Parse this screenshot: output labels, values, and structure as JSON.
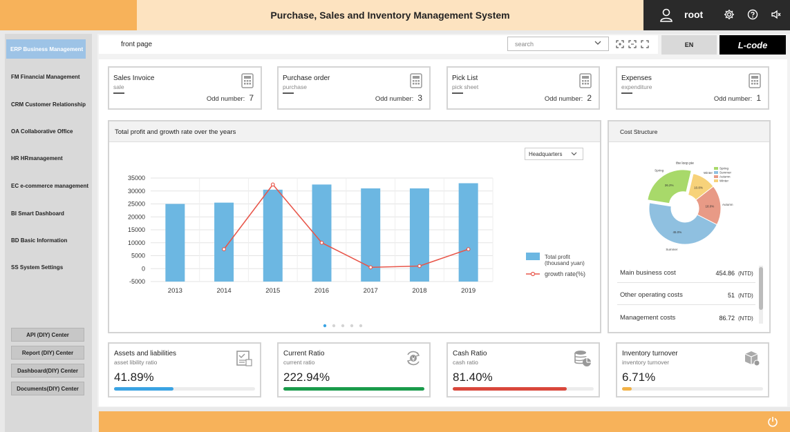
{
  "header": {
    "title": "Purchase, Sales and Inventory Management System",
    "user": "root"
  },
  "sidebar": {
    "items": [
      {
        "label": "ERP Business Management"
      },
      {
        "label": "FM Financial Management"
      },
      {
        "label": "CRM Customer Relationship"
      },
      {
        "label": "OA Collaborative Office"
      },
      {
        "label": "HR HRmanagement"
      },
      {
        "label": "EC e-commerce management"
      },
      {
        "label": "BI Smart Dashboard"
      },
      {
        "label": "BD Basic Information"
      },
      {
        "label": "SS System Settings"
      }
    ],
    "buttons": [
      {
        "label": "API (DIY) Center"
      },
      {
        "label": "Report (DIY) Center"
      },
      {
        "label": "Dashboard(DIY) Center"
      },
      {
        "label": "Documents(DIY) Center"
      }
    ]
  },
  "topbar": {
    "breadcrumb": "front page",
    "search_placeholder": "search",
    "lang_button": "EN",
    "lcode_button": "L-code"
  },
  "summary_cards": [
    {
      "title": "Sales Invoice",
      "subtitle": "sale",
      "dash": "—",
      "odd_label": "Odd number:",
      "odd_value": "7"
    },
    {
      "title": "Purchase order",
      "subtitle": "purchase",
      "dash": "—",
      "odd_label": "Odd number:",
      "odd_value": "3"
    },
    {
      "title": "Pick List",
      "subtitle": "pick sheet",
      "dash": "—",
      "odd_label": "Odd number:",
      "odd_value": "2"
    },
    {
      "title": "Expenses",
      "subtitle": "expenditure",
      "dash": "—",
      "odd_label": "Odd number:",
      "odd_value": "1"
    }
  ],
  "profit_panel": {
    "title": "Total profit and growth rate over the years",
    "dropdown_value": "Headquarters"
  },
  "chart_data": [
    {
      "type": "bar",
      "title": "",
      "categories": [
        "2013",
        "2014",
        "2015",
        "2016",
        "2017",
        "2018",
        "2019"
      ],
      "ylim": [
        -5000,
        35000
      ],
      "yticks": [
        "35000",
        "30000",
        "25000",
        "20000",
        "15000",
        "10000",
        "5000",
        "0",
        "-5000"
      ],
      "grid": true,
      "legend_position": "right",
      "series": [
        {
          "name": "Total profit\n(thousand yuan)",
          "type": "bar",
          "color": "#6cb7e2",
          "values": [
            25000,
            25500,
            30500,
            32500,
            31000,
            31000,
            33000
          ]
        },
        {
          "name": "growth rate(%)",
          "type": "line",
          "color": "#e8564a",
          "values": [
            null,
            7500,
            32500,
            10000,
            500,
            1000,
            7500
          ]
        }
      ],
      "legend": [
        "Total profit",
        "(thousand yuan)",
        "growth rate(%)"
      ]
    },
    {
      "type": "pie",
      "title": "the loop pie",
      "categories": [
        "Spring",
        "Summer",
        "Autumn",
        "Winter"
      ],
      "values": [
        26.2,
        45.0,
        18.0,
        10.8
      ],
      "value_labels": [
        "26.2%",
        "45.0%",
        "18.0%",
        "10.8%"
      ],
      "colors": [
        "#a8d96a",
        "#8fc0e0",
        "#e89a86",
        "#f7d27a"
      ],
      "legend_position": "right"
    }
  ],
  "cost_panel": {
    "title": "Cost Structure",
    "rows": [
      {
        "label": "Main business cost",
        "value": "454.86",
        "unit": "(NTD)"
      },
      {
        "label": "Other operating costs",
        "value": "51",
        "unit": "(NTD)"
      },
      {
        "label": "Management costs",
        "value": "86.72",
        "unit": "(NTD)"
      }
    ]
  },
  "metric_cards": [
    {
      "title": "Assets and liabilities",
      "subtitle": "asset libility ratio",
      "value": "41.89%",
      "progress": 0.42,
      "color": "#3aa3e3",
      "icon": "document-check-icon"
    },
    {
      "title": "Current Ratio",
      "subtitle": "current ratio",
      "value": "222.94%",
      "progress": 1.0,
      "color": "#1a9b4b",
      "icon": "cycle-money-icon"
    },
    {
      "title": "Cash Ratio",
      "subtitle": "cash ratio",
      "value": "81.40%",
      "progress": 0.81,
      "color": "#d9473b",
      "icon": "coin-pie-icon"
    },
    {
      "title": "Inventory turnover",
      "subtitle": "inventory turnover",
      "value": "6.71%",
      "progress": 0.07,
      "color": "#f2b247",
      "icon": "box-icon"
    }
  ]
}
